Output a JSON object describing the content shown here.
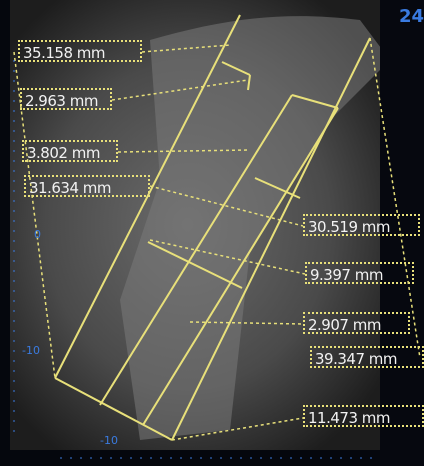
{
  "measurements": [
    "35.158 mm",
    "2.963 mm",
    "3.802 mm",
    "31.634 mm",
    "30.519 mm",
    "9.397 mm",
    "2.907 mm",
    "39.347 mm",
    "11.473 mm"
  ],
  "ruler": {
    "left": [
      "-10",
      "0"
    ],
    "bottom": [
      "-10"
    ]
  },
  "slice": "24"
}
